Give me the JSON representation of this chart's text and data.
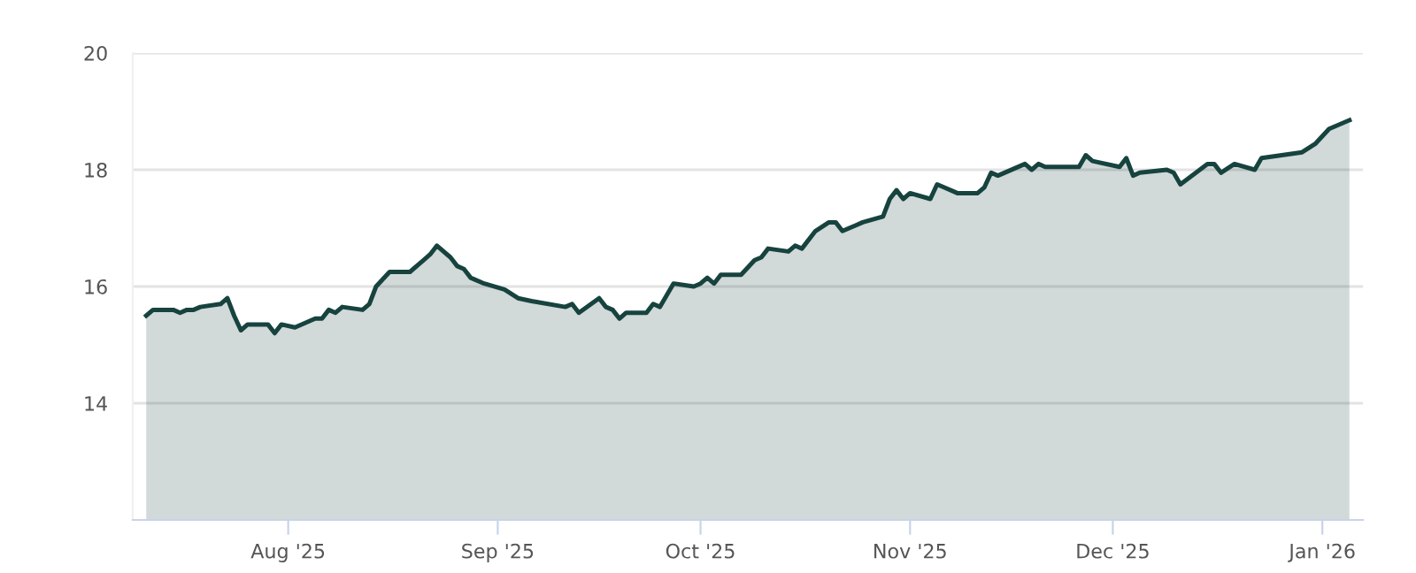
{
  "chart_data": {
    "type": "area",
    "color": "#17433f",
    "x": [
      "2025-07-11",
      "2025-07-12",
      "2025-07-15",
      "2025-07-16",
      "2025-07-17",
      "2025-07-18",
      "2025-07-19",
      "2025-07-22",
      "2025-07-23",
      "2025-07-24",
      "2025-07-25",
      "2025-07-26",
      "2025-07-29",
      "2025-07-30",
      "2025-07-31",
      "2025-08-02",
      "2025-08-05",
      "2025-08-06",
      "2025-08-07",
      "2025-08-08",
      "2025-08-09",
      "2025-08-12",
      "2025-08-13",
      "2025-08-14",
      "2025-08-16",
      "2025-08-19",
      "2025-08-21",
      "2025-08-22",
      "2025-08-23",
      "2025-08-25",
      "2025-08-26",
      "2025-08-27",
      "2025-08-28",
      "2025-08-30",
      "2025-09-02",
      "2025-09-04",
      "2025-09-06",
      "2025-09-11",
      "2025-09-12",
      "2025-09-13",
      "2025-09-16",
      "2025-09-17",
      "2025-09-18",
      "2025-09-19",
      "2025-09-20",
      "2025-09-23",
      "2025-09-24",
      "2025-09-25",
      "2025-09-27",
      "2025-09-30",
      "2025-10-01",
      "2025-10-02",
      "2025-10-03",
      "2025-10-04",
      "2025-10-07",
      "2025-10-09",
      "2025-10-10",
      "2025-10-11",
      "2025-10-14",
      "2025-10-15",
      "2025-10-16",
      "2025-10-18",
      "2025-10-20",
      "2025-10-21",
      "2025-10-22",
      "2025-10-24",
      "2025-10-25",
      "2025-10-28",
      "2025-10-29",
      "2025-10-30",
      "2025-10-31",
      "2025-11-01",
      "2025-11-04",
      "2025-11-05",
      "2025-11-06",
      "2025-11-08",
      "2025-11-11",
      "2025-11-12",
      "2025-11-13",
      "2025-11-14",
      "2025-11-18",
      "2025-11-19",
      "2025-11-20",
      "2025-11-21",
      "2025-11-26",
      "2025-11-27",
      "2025-11-28",
      "2025-12-02",
      "2025-12-03",
      "2025-12-04",
      "2025-12-05",
      "2025-12-09",
      "2025-12-10",
      "2025-12-11",
      "2025-12-15",
      "2025-12-16",
      "2025-12-17",
      "2025-12-19",
      "2025-12-22",
      "2025-12-23",
      "2025-12-29",
      "2025-12-31",
      "2026-01-02",
      "2026-01-05"
    ],
    "values": [
      15.5,
      15.6,
      15.6,
      15.55,
      15.6,
      15.6,
      15.65,
      15.7,
      15.8,
      15.5,
      15.25,
      15.35,
      15.35,
      15.2,
      15.35,
      15.3,
      15.45,
      15.45,
      15.6,
      15.55,
      15.65,
      15.6,
      15.7,
      16.0,
      16.25,
      16.25,
      16.45,
      16.55,
      16.7,
      16.5,
      16.35,
      16.3,
      16.15,
      16.05,
      15.95,
      15.8,
      15.75,
      15.65,
      15.7,
      15.55,
      15.8,
      15.65,
      15.6,
      15.45,
      15.55,
      15.55,
      15.7,
      15.65,
      16.05,
      16.0,
      16.05,
      16.15,
      16.05,
      16.2,
      16.2,
      16.45,
      16.5,
      16.65,
      16.6,
      16.7,
      16.65,
      16.95,
      17.1,
      17.1,
      16.95,
      17.05,
      17.1,
      17.2,
      17.5,
      17.65,
      17.5,
      17.6,
      17.5,
      17.75,
      17.7,
      17.6,
      17.6,
      17.7,
      17.95,
      17.9,
      18.1,
      18.0,
      18.1,
      18.05,
      18.05,
      18.25,
      18.15,
      18.05,
      18.2,
      17.9,
      17.95,
      18.0,
      17.95,
      17.75,
      18.1,
      18.1,
      17.95,
      18.1,
      18.0,
      18.2,
      18.3,
      18.45,
      18.7,
      18.85
    ],
    "xlim": [
      "2025-07-09",
      "2026-01-07"
    ],
    "xticks": [
      {
        "value": "2025-08-01",
        "label": "Aug '25"
      },
      {
        "value": "2025-09-01",
        "label": "Sep '25"
      },
      {
        "value": "2025-10-01",
        "label": "Oct '25"
      },
      {
        "value": "2025-11-01",
        "label": "Nov '25"
      },
      {
        "value": "2025-12-01",
        "label": "Dec '25"
      },
      {
        "value": "2026-01-01",
        "label": "Jan '26"
      }
    ],
    "ylim": [
      12,
      20
    ],
    "yticks": [
      14,
      16,
      18,
      20
    ],
    "grid": "y",
    "legend": false,
    "marker": "none",
    "line_style": "solid"
  }
}
